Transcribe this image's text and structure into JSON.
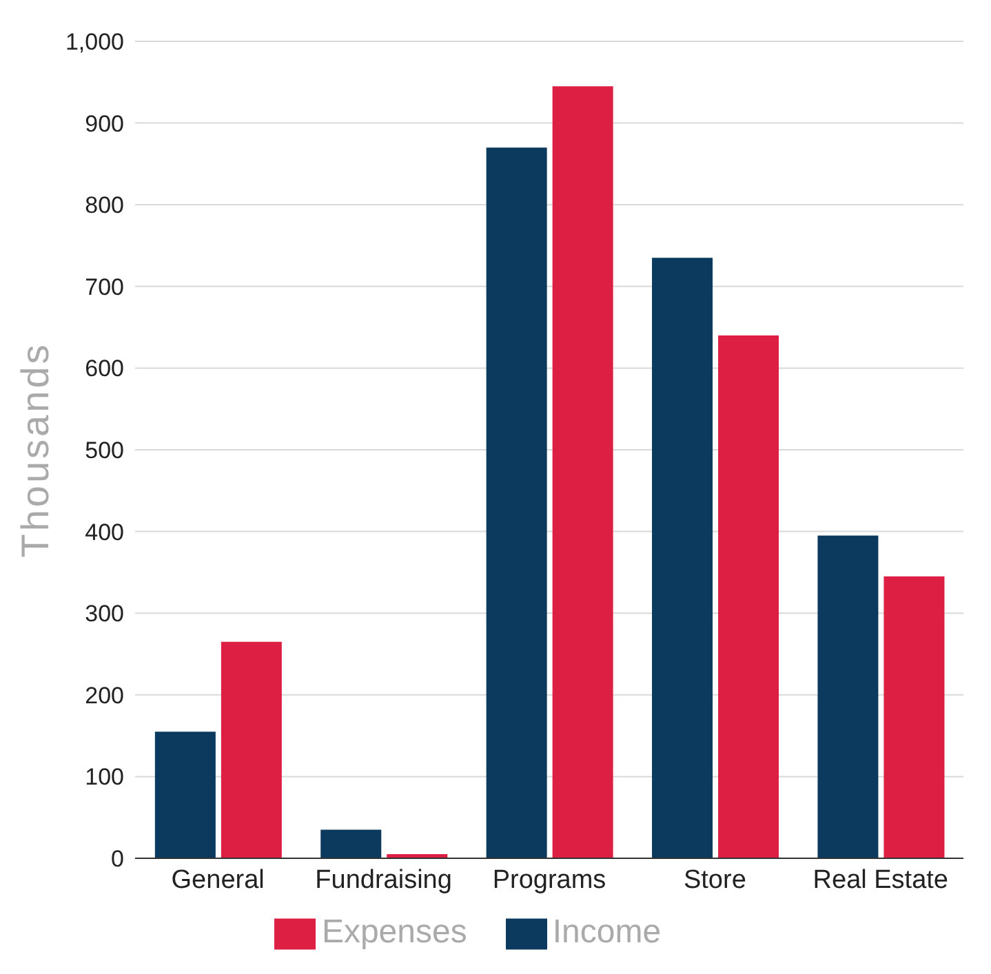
{
  "chart_data": {
    "type": "bar",
    "ylabel": "Thousands",
    "categories": [
      "General",
      "Fundraising",
      "Programs",
      "Store",
      "Real Estate"
    ],
    "series": [
      {
        "name": "Income",
        "color": "#0b3a5e",
        "values": [
          155,
          35,
          870,
          735,
          395
        ]
      },
      {
        "name": "Expenses",
        "color": "#dc1f43",
        "values": [
          265,
          5,
          945,
          640,
          345
        ]
      }
    ],
    "ylim": [
      0,
      1000
    ],
    "yticks": [
      0,
      100,
      200,
      300,
      400,
      500,
      600,
      700,
      800,
      900,
      {
        "value": 1000,
        "label": "1,000"
      }
    ],
    "grid": "y",
    "legend": "bottom"
  }
}
